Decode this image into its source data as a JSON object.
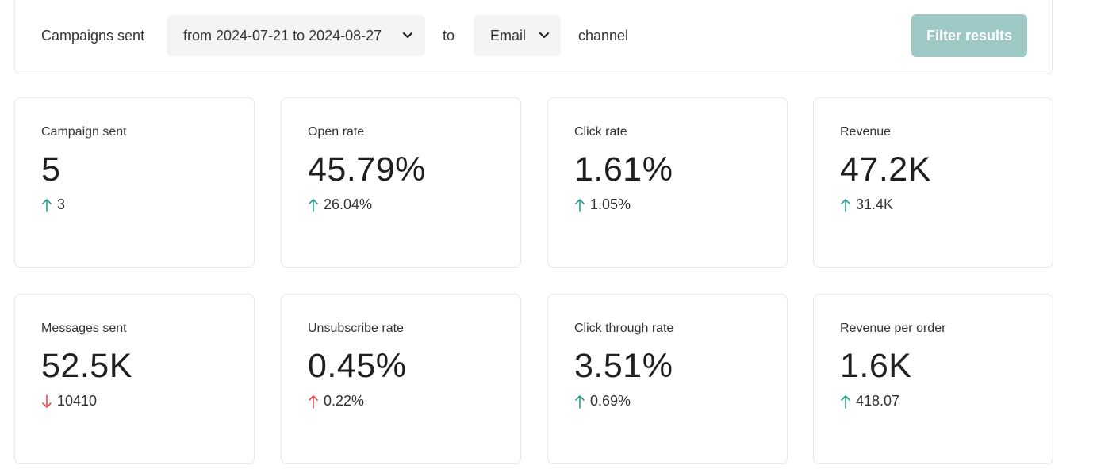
{
  "filter": {
    "prefix_label": "Campaigns sent",
    "date_range": "from 2024-07-21 to 2024-08-27",
    "to_label": "to",
    "channel_value": "Email",
    "channel_label": "channel",
    "filter_button": "Filter results"
  },
  "colors": {
    "up": "#2a9d8f",
    "down": "#e5484d",
    "button": "#9dc8c6"
  },
  "metrics": [
    {
      "label": "Campaign sent",
      "value": "5",
      "delta": "3",
      "direction": "up",
      "arrow_color": "#2a9d8f"
    },
    {
      "label": "Open rate",
      "value": "45.79%",
      "delta": "26.04%",
      "direction": "up",
      "arrow_color": "#2a9d8f"
    },
    {
      "label": "Click rate",
      "value": "1.61%",
      "delta": "1.05%",
      "direction": "up",
      "arrow_color": "#2a9d8f"
    },
    {
      "label": "Revenue",
      "value": "47.2K",
      "delta": "31.4K",
      "direction": "up",
      "arrow_color": "#2a9d8f"
    },
    {
      "label": "Messages sent",
      "value": "52.5K",
      "delta": "10410",
      "direction": "down",
      "arrow_color": "#e5484d"
    },
    {
      "label": "Unsubscribe rate",
      "value": "0.45%",
      "delta": "0.22%",
      "direction": "up",
      "arrow_color": "#e5484d"
    },
    {
      "label": "Click through rate",
      "value": "3.51%",
      "delta": "0.69%",
      "direction": "up",
      "arrow_color": "#2a9d8f"
    },
    {
      "label": "Revenue per order",
      "value": "1.6K",
      "delta": "418.07",
      "direction": "up",
      "arrow_color": "#2a9d8f"
    }
  ]
}
